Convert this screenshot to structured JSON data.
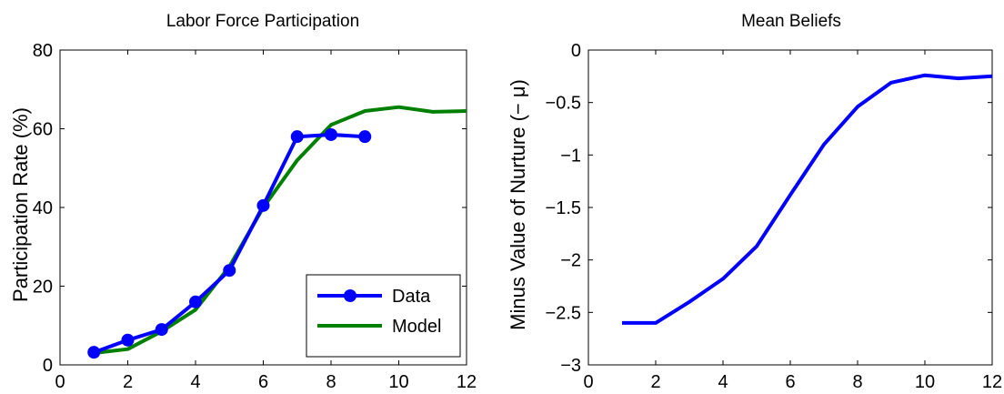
{
  "chart_data": [
    {
      "type": "line",
      "title": "Labor Force Participation",
      "xlabel": "",
      "ylabel": "Participation Rate (%)",
      "xlim": [
        0,
        12
      ],
      "ylim": [
        0,
        80
      ],
      "xticks": [
        "0",
        "2",
        "4",
        "6",
        "8",
        "10",
        "12"
      ],
      "yticks": [
        "0",
        "20",
        "40",
        "60",
        "80"
      ],
      "grid": false,
      "legend_position": "bottom-right",
      "series": [
        {
          "name": "Data",
          "color": "#0000ff",
          "marker": "circle",
          "x": [
            1,
            2,
            3,
            4,
            5,
            6,
            7,
            8,
            9
          ],
          "y": [
            3.2,
            6.3,
            9.0,
            16.0,
            24.0,
            40.5,
            58.0,
            58.5,
            58.0
          ]
        },
        {
          "name": "Model",
          "color": "#008000",
          "marker": "none",
          "x": [
            1,
            2,
            3,
            4,
            5,
            6,
            7,
            8,
            9,
            10,
            11,
            12
          ],
          "y": [
            3.0,
            4.0,
            8.5,
            14.0,
            25.0,
            40.0,
            52.0,
            61.0,
            64.5,
            65.5,
            64.3,
            64.5
          ]
        }
      ]
    },
    {
      "type": "line",
      "title": "Mean Beliefs",
      "xlabel": "",
      "ylabel": "Minus Value of Nurture (− μ)",
      "xlim": [
        0,
        12
      ],
      "ylim": [
        -3,
        0
      ],
      "xticks": [
        "0",
        "2",
        "4",
        "6",
        "8",
        "10",
        "12"
      ],
      "yticks": [
        "−3",
        "−2.5",
        "−2",
        "−1.5",
        "−1",
        "−0.5",
        "0"
      ],
      "grid": false,
      "series": [
        {
          "color": "#0000ff",
          "marker": "none",
          "x": [
            1,
            2,
            3,
            4,
            5,
            6,
            7,
            8,
            9,
            10,
            11,
            12
          ],
          "y": [
            -2.6,
            -2.6,
            -2.4,
            -2.18,
            -1.87,
            -1.38,
            -0.9,
            -0.54,
            -0.31,
            -0.24,
            -0.27,
            -0.25
          ]
        }
      ]
    }
  ]
}
